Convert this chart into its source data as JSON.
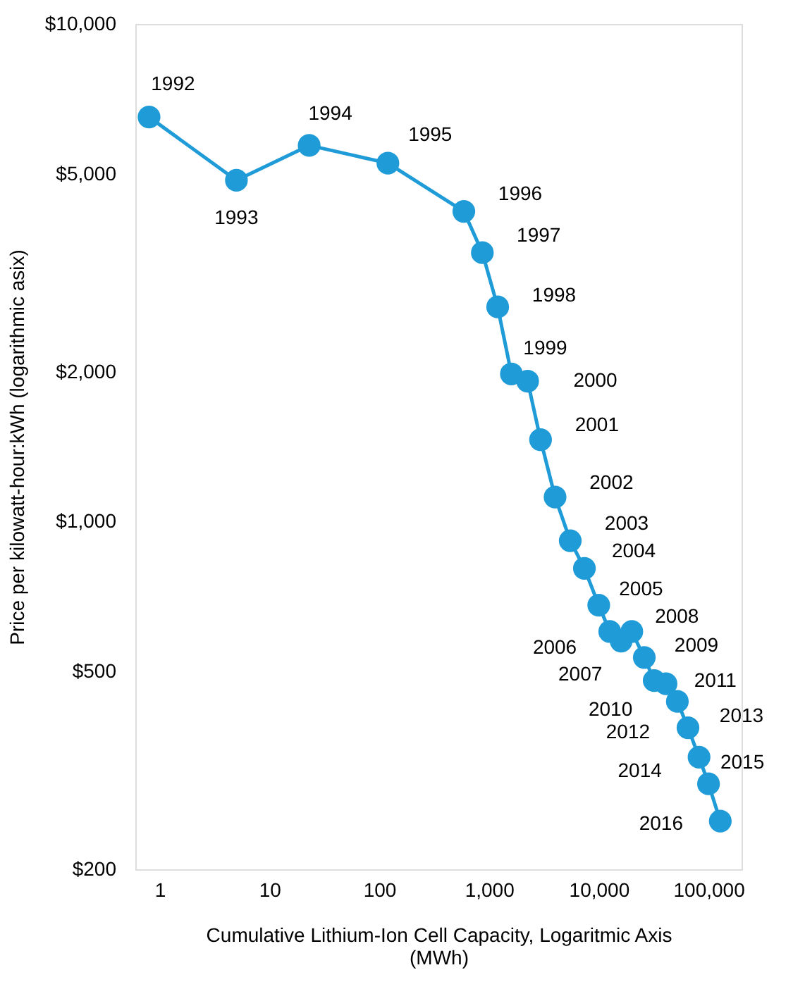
{
  "chart_data": {
    "type": "line",
    "xlabel": "Cumulative Lithium-Ion Cell Capacity, Logaritmic Axis (MWh)",
    "ylabel": "Price per kilowatt-hour:kWh (logarithmic asix)",
    "x": [
      0.8,
      5,
      23,
      120,
      590,
      870,
      1200,
      1600,
      2250,
      2950,
      4000,
      5500,
      7400,
      10000,
      12600,
      16000,
      20000,
      26000,
      32000,
      41000,
      52000,
      65000,
      82000,
      100000,
      128000
    ],
    "series": [
      {
        "color": "#1f9bd7",
        "values": [
          6500,
          4850,
          5700,
          5250,
          4200,
          3470,
          2700,
          1980,
          1915,
          1460,
          1120,
          915,
          805,
          679,
          601,
          575,
          601,
          533,
          479,
          472,
          435,
          385,
          336,
          297,
          250
        ]
      }
    ],
    "annotations": [
      {
        "text": "1992",
        "x": 0.8,
        "y": 6500
      },
      {
        "text": "1993",
        "x": 5,
        "y": 4850
      },
      {
        "text": "1994",
        "x": 23,
        "y": 5700
      },
      {
        "text": "1995",
        "x": 120,
        "y": 5250
      },
      {
        "text": "1996",
        "x": 590,
        "y": 4200
      },
      {
        "text": "1997",
        "x": 870,
        "y": 3470
      },
      {
        "text": "1998",
        "x": 1200,
        "y": 2700
      },
      {
        "text": "1999",
        "x": 1600,
        "y": 1980
      },
      {
        "text": "2000",
        "x": 2250,
        "y": 1915
      },
      {
        "text": "2001",
        "x": 2950,
        "y": 1460
      },
      {
        "text": "2002",
        "x": 4000,
        "y": 1120
      },
      {
        "text": "2003",
        "x": 5500,
        "y": 915
      },
      {
        "text": "2004",
        "x": 7400,
        "y": 805
      },
      {
        "text": "2005",
        "x": 10000,
        "y": 679
      },
      {
        "text": "2006",
        "x": 12600,
        "y": 601
      },
      {
        "text": "2007",
        "x": 16000,
        "y": 575
      },
      {
        "text": "2008",
        "x": 20000,
        "y": 601
      },
      {
        "text": "2009",
        "x": 26000,
        "y": 533
      },
      {
        "text": "2010",
        "x": 32000,
        "y": 479
      },
      {
        "text": "2011",
        "x": 41000,
        "y": 472
      },
      {
        "text": "2012",
        "x": 52000,
        "y": 435
      },
      {
        "text": "2013",
        "x": 65000,
        "y": 385
      },
      {
        "text": "2014",
        "x": 82000,
        "y": 336
      },
      {
        "text": "2015",
        "x": 100000,
        "y": 297
      },
      {
        "text": "2016",
        "x": 128000,
        "y": 250
      }
    ],
    "log": "xy",
    "grid": false,
    "marker": "circle",
    "line_style": "solid",
    "xlim": [
      0.6,
      200000
    ],
    "xticks": [
      1,
      10,
      100,
      {
        "value": 1000,
        "label": "1,000"
      },
      {
        "value": 10000,
        "label": "10,000"
      },
      {
        "value": 100000,
        "label": "100,000"
      }
    ],
    "ylim": [
      200,
      10000
    ],
    "yticks": [
      {
        "value": 200,
        "label": "$200"
      },
      {
        "value": 500,
        "label": "$500"
      },
      {
        "value": 1000,
        "label": "$1,000"
      },
      {
        "value": 2000,
        "label": "$2,000"
      },
      {
        "value": 5000,
        "label": "$5,000"
      },
      {
        "value": 10000,
        "label": "$10,000"
      }
    ]
  }
}
